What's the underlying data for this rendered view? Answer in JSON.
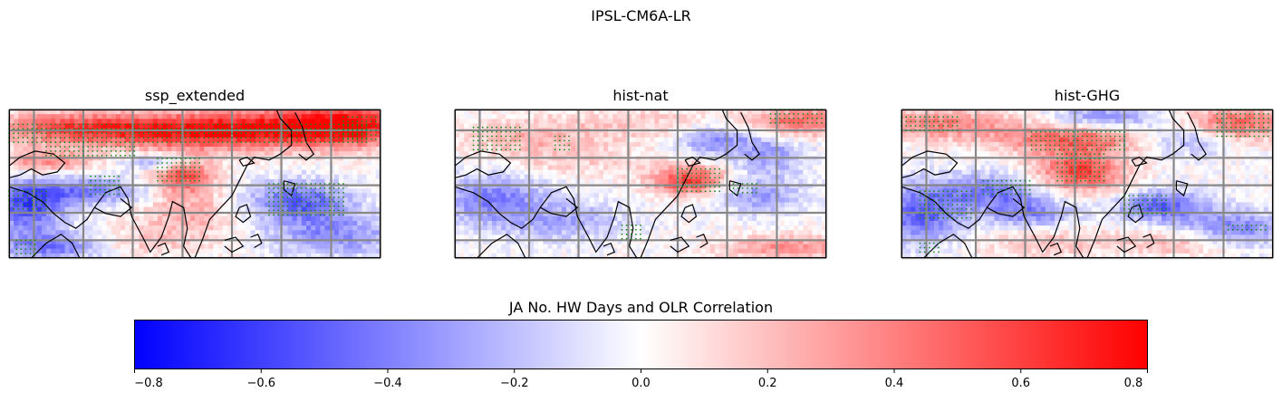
{
  "suptitle": "IPSL-CM6A-LR",
  "chart_data": {
    "type": "heatmap",
    "panels": [
      {
        "title": "ssp_extended",
        "blobs": [
          [
            0.15,
            0.12,
            0.22,
            0.1,
            0.45
          ],
          [
            0.45,
            0.15,
            0.28,
            0.12,
            0.55
          ],
          [
            0.75,
            0.12,
            0.28,
            0.14,
            0.55
          ],
          [
            0.92,
            0.1,
            0.14,
            0.14,
            0.5
          ],
          [
            0.1,
            0.35,
            0.12,
            0.08,
            0.4
          ],
          [
            0.47,
            0.45,
            0.08,
            0.12,
            0.55
          ],
          [
            0.48,
            0.7,
            0.14,
            0.16,
            0.25
          ],
          [
            0.05,
            0.65,
            0.1,
            0.18,
            -0.55
          ],
          [
            0.22,
            0.55,
            0.16,
            0.1,
            -0.4
          ],
          [
            0.78,
            0.62,
            0.14,
            0.14,
            -0.5
          ],
          [
            0.88,
            0.85,
            0.18,
            0.14,
            -0.35
          ],
          [
            0.12,
            0.92,
            0.14,
            0.1,
            -0.45
          ],
          [
            0.4,
            0.35,
            0.08,
            0.05,
            -0.4
          ],
          [
            0.35,
            0.9,
            0.2,
            0.1,
            0.15
          ]
        ],
        "stipple_regions": [
          [
            0.0,
            0.1,
            0.97,
            0.22
          ],
          [
            0.1,
            0.22,
            0.35,
            0.32
          ],
          [
            0.4,
            0.33,
            0.52,
            0.5
          ],
          [
            0.7,
            0.5,
            0.9,
            0.72
          ],
          [
            0.22,
            0.45,
            0.3,
            0.6
          ],
          [
            0.0,
            0.55,
            0.1,
            0.7
          ],
          [
            0.02,
            0.88,
            0.08,
            0.98
          ],
          [
            0.9,
            0.05,
            0.99,
            0.2
          ]
        ]
      },
      {
        "title": "hist-nat",
        "blobs": [
          [
            0.5,
            0.1,
            0.4,
            0.12,
            0.15
          ],
          [
            0.93,
            0.08,
            0.12,
            0.1,
            0.45
          ],
          [
            0.63,
            0.48,
            0.1,
            0.1,
            0.6
          ],
          [
            0.7,
            0.2,
            0.1,
            0.1,
            -0.4
          ],
          [
            0.85,
            0.3,
            0.1,
            0.14,
            -0.3
          ],
          [
            0.1,
            0.6,
            0.14,
            0.18,
            -0.4
          ],
          [
            0.3,
            0.75,
            0.16,
            0.14,
            -0.25
          ],
          [
            0.82,
            0.58,
            0.12,
            0.12,
            -0.3
          ],
          [
            0.3,
            0.35,
            0.25,
            0.1,
            0.15
          ],
          [
            0.9,
            0.93,
            0.18,
            0.08,
            0.35
          ],
          [
            0.2,
            0.2,
            0.18,
            0.1,
            0.2
          ]
        ],
        "stipple_regions": [
          [
            0.85,
            0.0,
            0.99,
            0.1
          ],
          [
            0.6,
            0.4,
            0.72,
            0.58
          ],
          [
            0.05,
            0.12,
            0.18,
            0.3
          ],
          [
            0.27,
            0.18,
            0.32,
            0.3
          ],
          [
            0.75,
            0.5,
            0.82,
            0.58
          ],
          [
            0.45,
            0.78,
            0.5,
            0.9
          ]
        ]
      },
      {
        "title": "hist-GHG",
        "blobs": [
          [
            0.1,
            0.1,
            0.2,
            0.1,
            0.4
          ],
          [
            0.45,
            0.2,
            0.2,
            0.1,
            0.45
          ],
          [
            0.48,
            0.42,
            0.12,
            0.14,
            0.6
          ],
          [
            0.9,
            0.1,
            0.14,
            0.12,
            0.5
          ],
          [
            0.55,
            0.05,
            0.14,
            0.08,
            -0.35
          ],
          [
            0.78,
            0.2,
            0.12,
            0.1,
            -0.3
          ],
          [
            0.05,
            0.7,
            0.12,
            0.2,
            -0.5
          ],
          [
            0.25,
            0.55,
            0.14,
            0.12,
            -0.4
          ],
          [
            0.35,
            0.7,
            0.12,
            0.1,
            -0.35
          ],
          [
            0.7,
            0.65,
            0.12,
            0.1,
            -0.5
          ],
          [
            0.9,
            0.8,
            0.14,
            0.12,
            -0.4
          ],
          [
            0.4,
            0.9,
            0.2,
            0.1,
            0.2
          ],
          [
            0.75,
            0.9,
            0.14,
            0.08,
            0.25
          ]
        ],
        "stipple_regions": [
          [
            0.0,
            0.05,
            0.15,
            0.15
          ],
          [
            0.35,
            0.15,
            0.6,
            0.3
          ],
          [
            0.42,
            0.3,
            0.55,
            0.5
          ],
          [
            0.85,
            0.0,
            0.99,
            0.18
          ],
          [
            0.05,
            0.55,
            0.2,
            0.75
          ],
          [
            0.22,
            0.48,
            0.35,
            0.6
          ],
          [
            0.6,
            0.58,
            0.72,
            0.72
          ],
          [
            0.88,
            0.78,
            0.99,
            0.82
          ],
          [
            0.05,
            0.9,
            0.1,
            0.98
          ]
        ]
      }
    ],
    "colorbar": {
      "label": "JA No. HW Days and OLR Correlation",
      "cmap": "bwr",
      "vmin": -0.8,
      "vmax": 0.8,
      "ticks": [
        -0.8,
        -0.6,
        -0.4,
        -0.2,
        0.0,
        0.2,
        0.4,
        0.6,
        0.8
      ],
      "tick_labels": [
        "−0.8",
        "−0.6",
        "−0.4",
        "−0.2",
        "0.0",
        "0.2",
        "0.4",
        "0.6",
        "0.8"
      ]
    },
    "stipple_color": "#1a8a1a",
    "grid_color": "#888888"
  }
}
